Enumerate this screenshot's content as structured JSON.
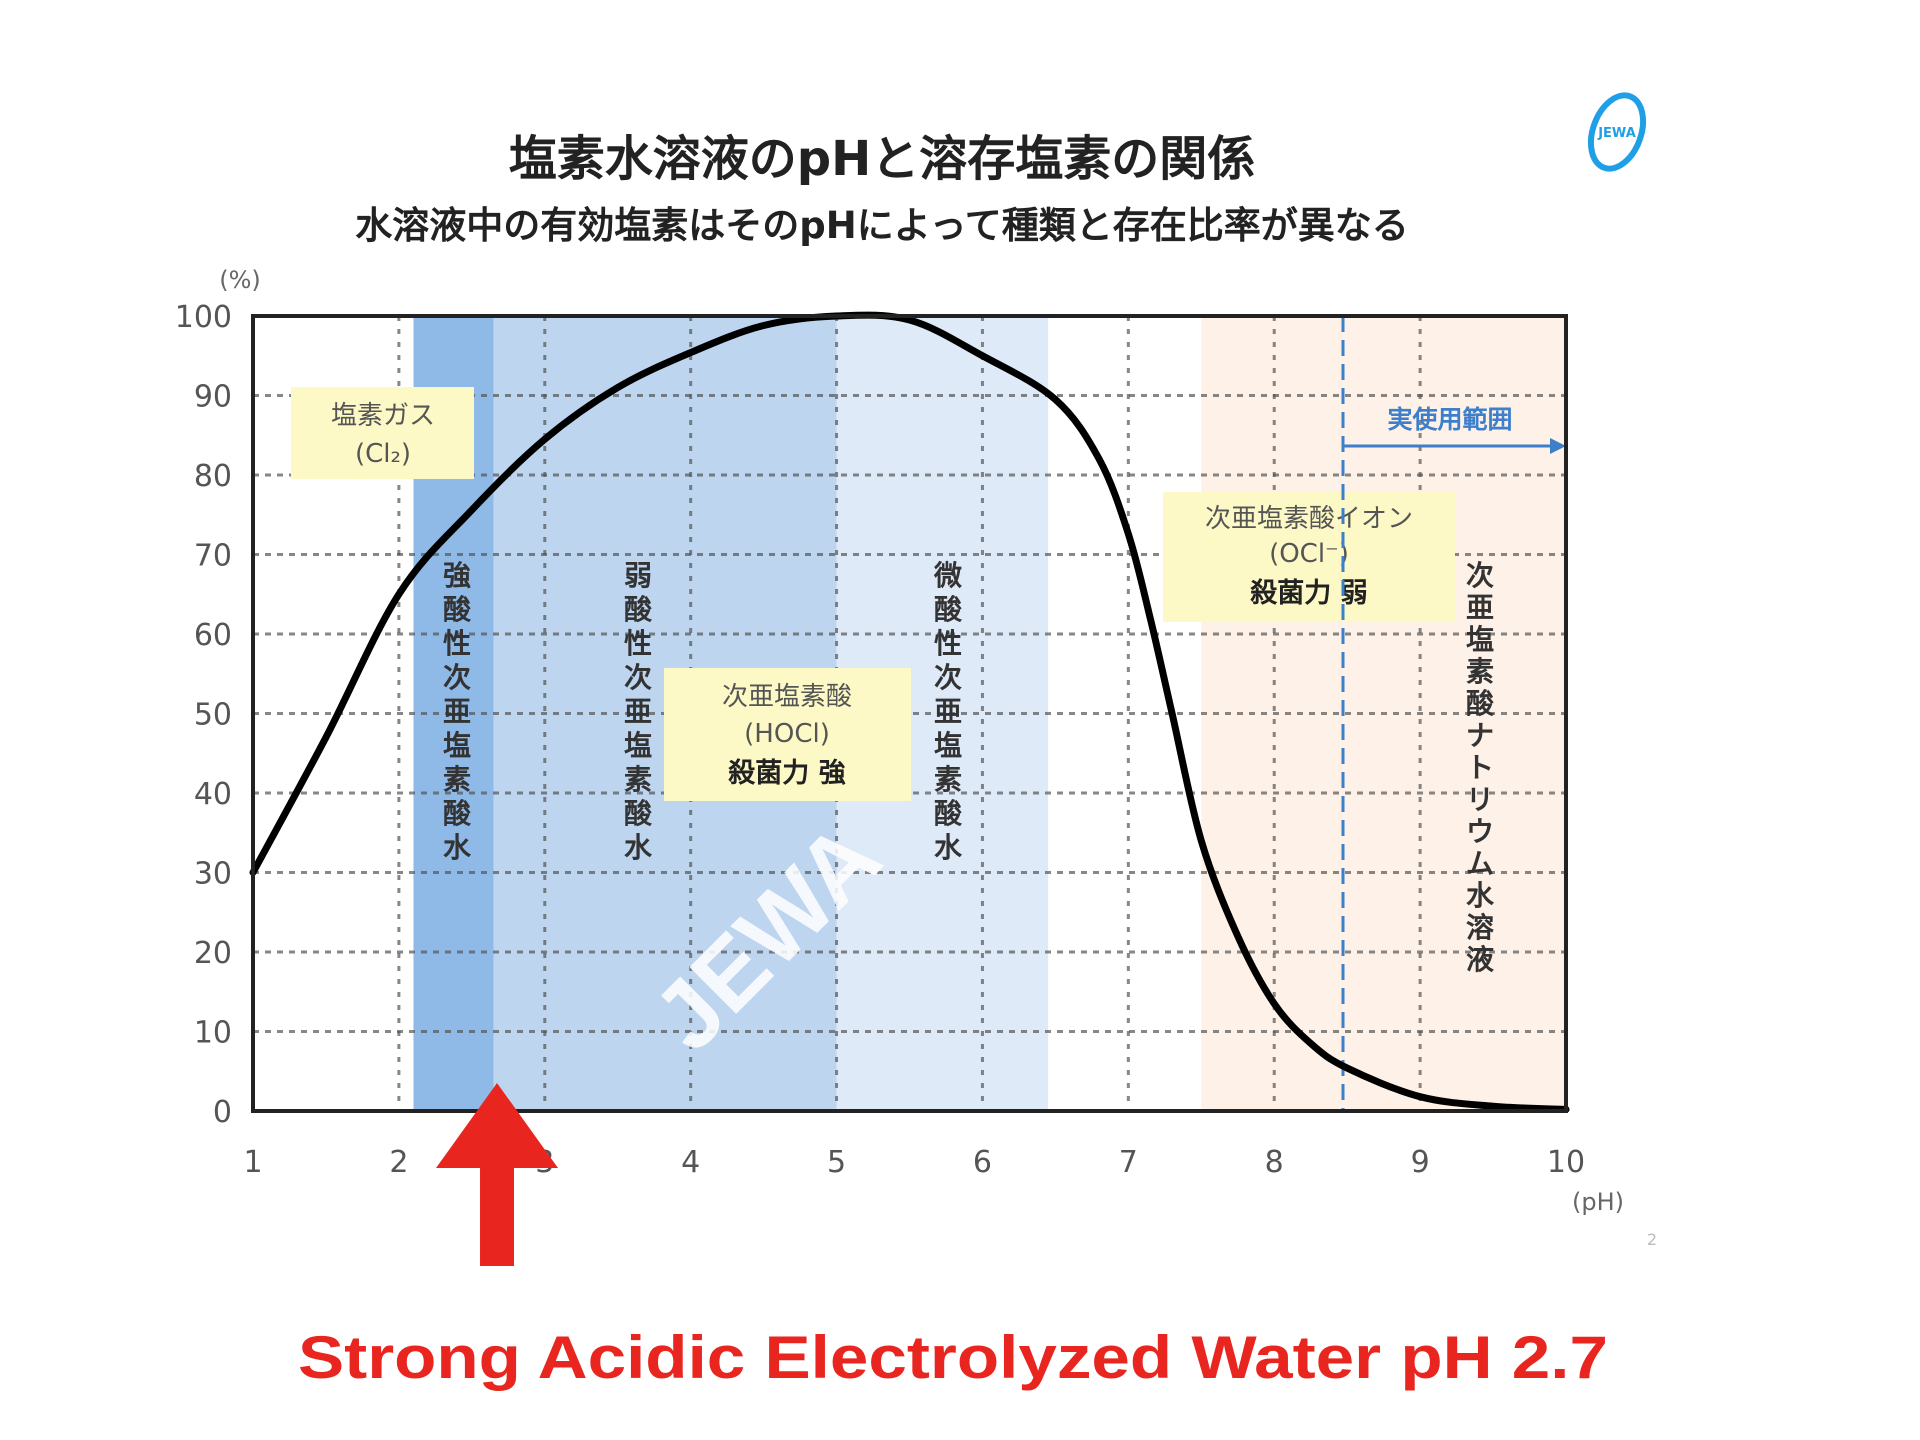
{
  "chart_data": {
    "type": "line",
    "title": "塩素水溶液のpHと溶存塩素の関係",
    "subtitle": "水溶液中の有効塩素はそのpHによって種類と存在比率が異なる",
    "xlabel": "(pH)",
    "ylabel": "(%)",
    "xlim": [
      1,
      10
    ],
    "ylim": [
      0,
      100
    ],
    "x_ticks": [
      "1",
      "2",
      "3",
      "4",
      "5",
      "6",
      "7",
      "8",
      "9",
      "10"
    ],
    "y_ticks": [
      "0",
      "10",
      "20",
      "30",
      "40",
      "50",
      "60",
      "70",
      "80",
      "90",
      "100"
    ],
    "grid": true,
    "series": [
      {
        "x": [
          1,
          1.5,
          2,
          2.5,
          3,
          3.5,
          4,
          4.5,
          5,
          5.5,
          6,
          6.5,
          6.8,
          7,
          7.15,
          7.3,
          7.5,
          7.75,
          8,
          8.25,
          8.5,
          9,
          9.5,
          10
        ],
        "y": [
          30,
          47,
          65,
          75.6,
          84.5,
          91,
          95.4,
          98.8,
          100,
          99.5,
          95,
          89.5,
          82,
          72.6,
          62,
          50,
          34,
          22,
          13.5,
          8.5,
          5.4,
          1.8,
          0.6,
          0.2
        ],
        "color": "#000000"
      }
    ],
    "regions": [
      {
        "from": 2.1,
        "to": 2.65,
        "color": "#8fb9e6",
        "label": "強酸性次亜塩素酸水"
      },
      {
        "from": 2.65,
        "to": 5.0,
        "color": "#bdd5ef",
        "label": "弱酸性次亜塩素酸水"
      },
      {
        "from": 5.0,
        "to": 6.45,
        "color": "#dfeaf8",
        "label": "微酸性次亜塩素酸水"
      },
      {
        "from": 7.5,
        "to": 10,
        "color": "#fdf1e8",
        "label": "次亜塩素酸ナトリウム水溶液"
      }
    ],
    "annotations": {
      "cl2": {
        "name": "塩素ガス",
        "formula": "(Cl₂)"
      },
      "hocl": {
        "name": "次亜塩素酸",
        "formula": "(HOCl)",
        "note": "殺菌力 強"
      },
      "ocl": {
        "name": "次亜塩素酸イオン",
        "formula": "(OCl⁻)",
        "note": "殺菌力 弱"
      },
      "practical_range": {
        "label": "実使用範囲",
        "from": 8.5,
        "color": "#3d7fcb"
      },
      "watermark": "JEWA",
      "arrow_at_ph": 2.7,
      "arrow_color": "#e8261f",
      "caption": "Strong Acidic Electrolyzed Water pH 2.7"
    }
  },
  "page_number": "2",
  "logo": "JEWA"
}
